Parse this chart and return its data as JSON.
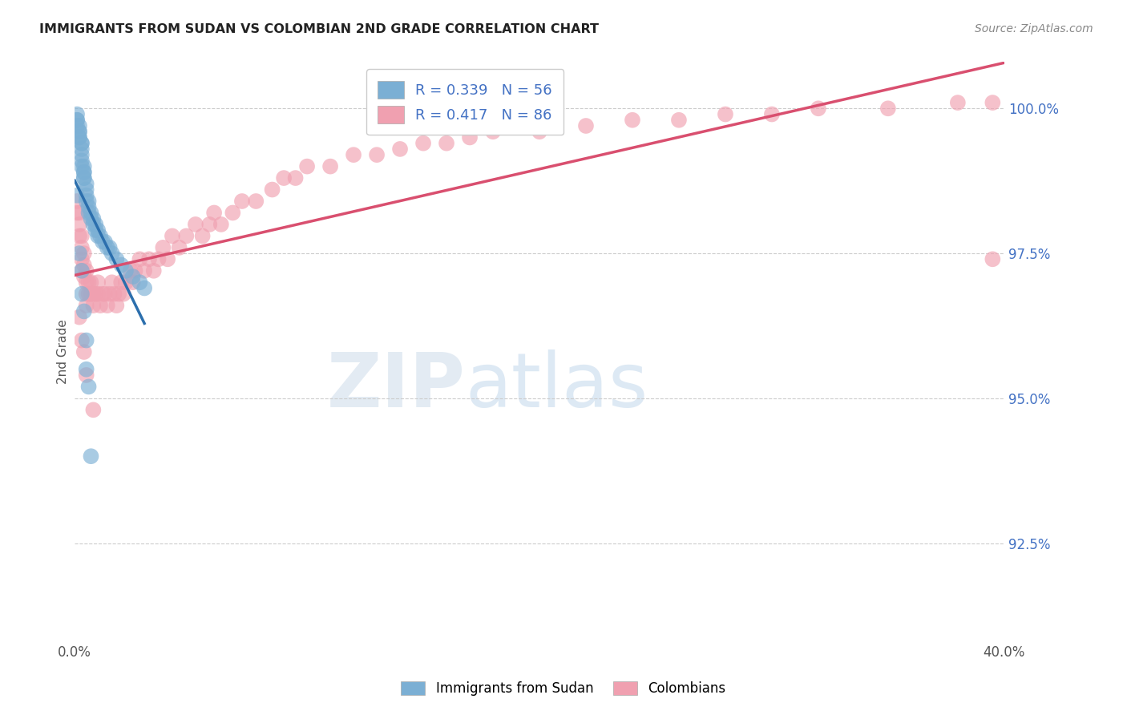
{
  "title": "IMMIGRANTS FROM SUDAN VS COLOMBIAN 2ND GRADE CORRELATION CHART",
  "source": "Source: ZipAtlas.com",
  "ylabel": "2nd Grade",
  "watermark": "ZIPatlas",
  "sudan_R": 0.339,
  "sudan_N": 56,
  "colombia_R": 0.417,
  "colombia_N": 86,
  "xlim": [
    0.0,
    0.4
  ],
  "ylim": [
    0.908,
    1.008
  ],
  "yticks": [
    0.925,
    0.95,
    0.975,
    1.0
  ],
  "ytick_labels": [
    "92.5%",
    "95.0%",
    "97.5%",
    "100.0%"
  ],
  "sudan_color": "#7bafd4",
  "sudan_line_color": "#2c6fad",
  "colombia_color": "#f0a0b0",
  "colombia_line_color": "#d94f6f",
  "sudan_x": [
    0.001,
    0.001,
    0.001,
    0.001,
    0.002,
    0.002,
    0.002,
    0.002,
    0.002,
    0.003,
    0.003,
    0.003,
    0.003,
    0.003,
    0.003,
    0.004,
    0.004,
    0.004,
    0.004,
    0.004,
    0.005,
    0.005,
    0.005,
    0.005,
    0.006,
    0.006,
    0.006,
    0.007,
    0.007,
    0.008,
    0.008,
    0.009,
    0.009,
    0.01,
    0.01,
    0.011,
    0.012,
    0.013,
    0.014,
    0.015,
    0.016,
    0.018,
    0.02,
    0.022,
    0.025,
    0.028,
    0.03,
    0.001,
    0.002,
    0.003,
    0.003,
    0.004,
    0.005,
    0.005,
    0.006,
    0.007
  ],
  "sudan_y": [
    0.999,
    0.998,
    0.998,
    0.997,
    0.997,
    0.996,
    0.996,
    0.995,
    0.995,
    0.994,
    0.994,
    0.993,
    0.992,
    0.991,
    0.99,
    0.99,
    0.989,
    0.989,
    0.988,
    0.988,
    0.987,
    0.986,
    0.985,
    0.984,
    0.984,
    0.983,
    0.982,
    0.982,
    0.981,
    0.981,
    0.98,
    0.98,
    0.979,
    0.979,
    0.978,
    0.978,
    0.977,
    0.977,
    0.976,
    0.976,
    0.975,
    0.974,
    0.973,
    0.972,
    0.971,
    0.97,
    0.969,
    0.985,
    0.975,
    0.972,
    0.968,
    0.965,
    0.96,
    0.955,
    0.952,
    0.94
  ],
  "colombia_x": [
    0.001,
    0.001,
    0.002,
    0.002,
    0.002,
    0.003,
    0.003,
    0.003,
    0.003,
    0.004,
    0.004,
    0.004,
    0.005,
    0.005,
    0.005,
    0.005,
    0.006,
    0.006,
    0.007,
    0.007,
    0.008,
    0.008,
    0.009,
    0.01,
    0.01,
    0.011,
    0.012,
    0.013,
    0.014,
    0.015,
    0.016,
    0.017,
    0.018,
    0.019,
    0.02,
    0.021,
    0.022,
    0.024,
    0.025,
    0.026,
    0.028,
    0.03,
    0.032,
    0.034,
    0.036,
    0.038,
    0.04,
    0.042,
    0.045,
    0.048,
    0.052,
    0.055,
    0.058,
    0.06,
    0.063,
    0.068,
    0.072,
    0.078,
    0.085,
    0.09,
    0.095,
    0.1,
    0.11,
    0.12,
    0.13,
    0.14,
    0.15,
    0.16,
    0.17,
    0.18,
    0.2,
    0.22,
    0.24,
    0.26,
    0.28,
    0.3,
    0.32,
    0.35,
    0.38,
    0.395,
    0.002,
    0.003,
    0.004,
    0.005,
    0.008,
    0.395
  ],
  "colombia_y": [
    0.984,
    0.982,
    0.98,
    0.978,
    0.982,
    0.978,
    0.976,
    0.974,
    0.972,
    0.975,
    0.973,
    0.971,
    0.972,
    0.97,
    0.968,
    0.966,
    0.97,
    0.968,
    0.97,
    0.968,
    0.968,
    0.966,
    0.968,
    0.97,
    0.968,
    0.966,
    0.968,
    0.968,
    0.966,
    0.968,
    0.97,
    0.968,
    0.966,
    0.968,
    0.97,
    0.968,
    0.97,
    0.972,
    0.97,
    0.972,
    0.974,
    0.972,
    0.974,
    0.972,
    0.974,
    0.976,
    0.974,
    0.978,
    0.976,
    0.978,
    0.98,
    0.978,
    0.98,
    0.982,
    0.98,
    0.982,
    0.984,
    0.984,
    0.986,
    0.988,
    0.988,
    0.99,
    0.99,
    0.992,
    0.992,
    0.993,
    0.994,
    0.994,
    0.995,
    0.996,
    0.996,
    0.997,
    0.998,
    0.998,
    0.999,
    0.999,
    1.0,
    1.0,
    1.001,
    1.001,
    0.964,
    0.96,
    0.958,
    0.954,
    0.948,
    0.974
  ],
  "grid_color": "#cccccc",
  "title_color": "#222222",
  "axis_label_color": "#555555",
  "tick_color_right": "#4472c4",
  "legend_sudan_label": "R = 0.339   N = 56",
  "legend_colombia_label": "R = 0.417   N = 86",
  "background_color": "#ffffff"
}
